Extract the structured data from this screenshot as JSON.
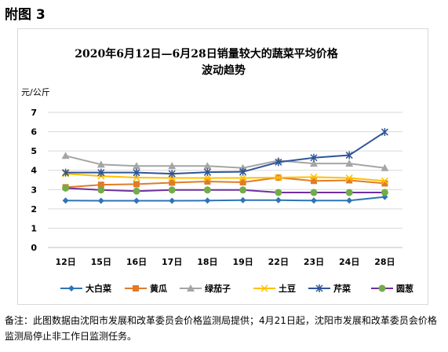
{
  "figure_label": "附图 3",
  "note": "备注：此图数据由沈阳市发展和改革委员会价格监测局提供；4月21日起，沈阳市发展和改革委员会价格监测局停止非工作日监测任务。",
  "chart_data": {
    "type": "line",
    "title_line1": "2020年6月12日—6月28日销量较大的蔬菜平均价格",
    "title_line2": "波动趋势",
    "ylabel": "元/公斤",
    "xlabel": "",
    "categories": [
      "12日",
      "15日",
      "16日",
      "17日",
      "18日",
      "19日",
      "22日",
      "23日",
      "24日",
      "28日"
    ],
    "ylim": [
      0,
      7
    ],
    "yticks": [
      "0",
      "1",
      "2",
      "3",
      "4",
      "5",
      "6",
      "7"
    ],
    "grid": true,
    "legend_position": "bottom",
    "series": [
      {
        "name": "大白菜",
        "color": "#2e75b6",
        "marker": "diamond",
        "values": [
          2.43,
          2.42,
          2.42,
          2.42,
          2.43,
          2.45,
          2.45,
          2.43,
          2.43,
          2.62
        ]
      },
      {
        "name": "黄瓜",
        "color": "#e07b2a",
        "marker": "square",
        "values": [
          3.12,
          3.25,
          3.28,
          3.36,
          3.42,
          3.38,
          3.62,
          3.45,
          3.48,
          3.32
        ]
      },
      {
        "name": "绿茄子",
        "color": "#a5a5a5",
        "marker": "triangle",
        "values": [
          4.75,
          4.3,
          4.22,
          4.22,
          4.22,
          4.12,
          4.5,
          4.35,
          4.35,
          4.12
        ]
      },
      {
        "name": "土豆",
        "color": "#ffc000",
        "marker": "cross",
        "values": [
          3.82,
          3.7,
          3.62,
          3.6,
          3.6,
          3.6,
          3.62,
          3.65,
          3.6,
          3.45
        ]
      },
      {
        "name": "芹菜",
        "color": "#2f5597",
        "marker": "star",
        "values": [
          3.88,
          3.88,
          3.88,
          3.82,
          3.9,
          3.92,
          4.42,
          4.65,
          4.78,
          5.98
        ]
      },
      {
        "name": "圆葱",
        "color": "#70ad47",
        "line_color": "#7030a0",
        "marker": "circle",
        "values": [
          3.08,
          2.98,
          2.92,
          2.98,
          2.98,
          2.98,
          2.85,
          2.85,
          2.85,
          2.85
        ]
      }
    ]
  }
}
